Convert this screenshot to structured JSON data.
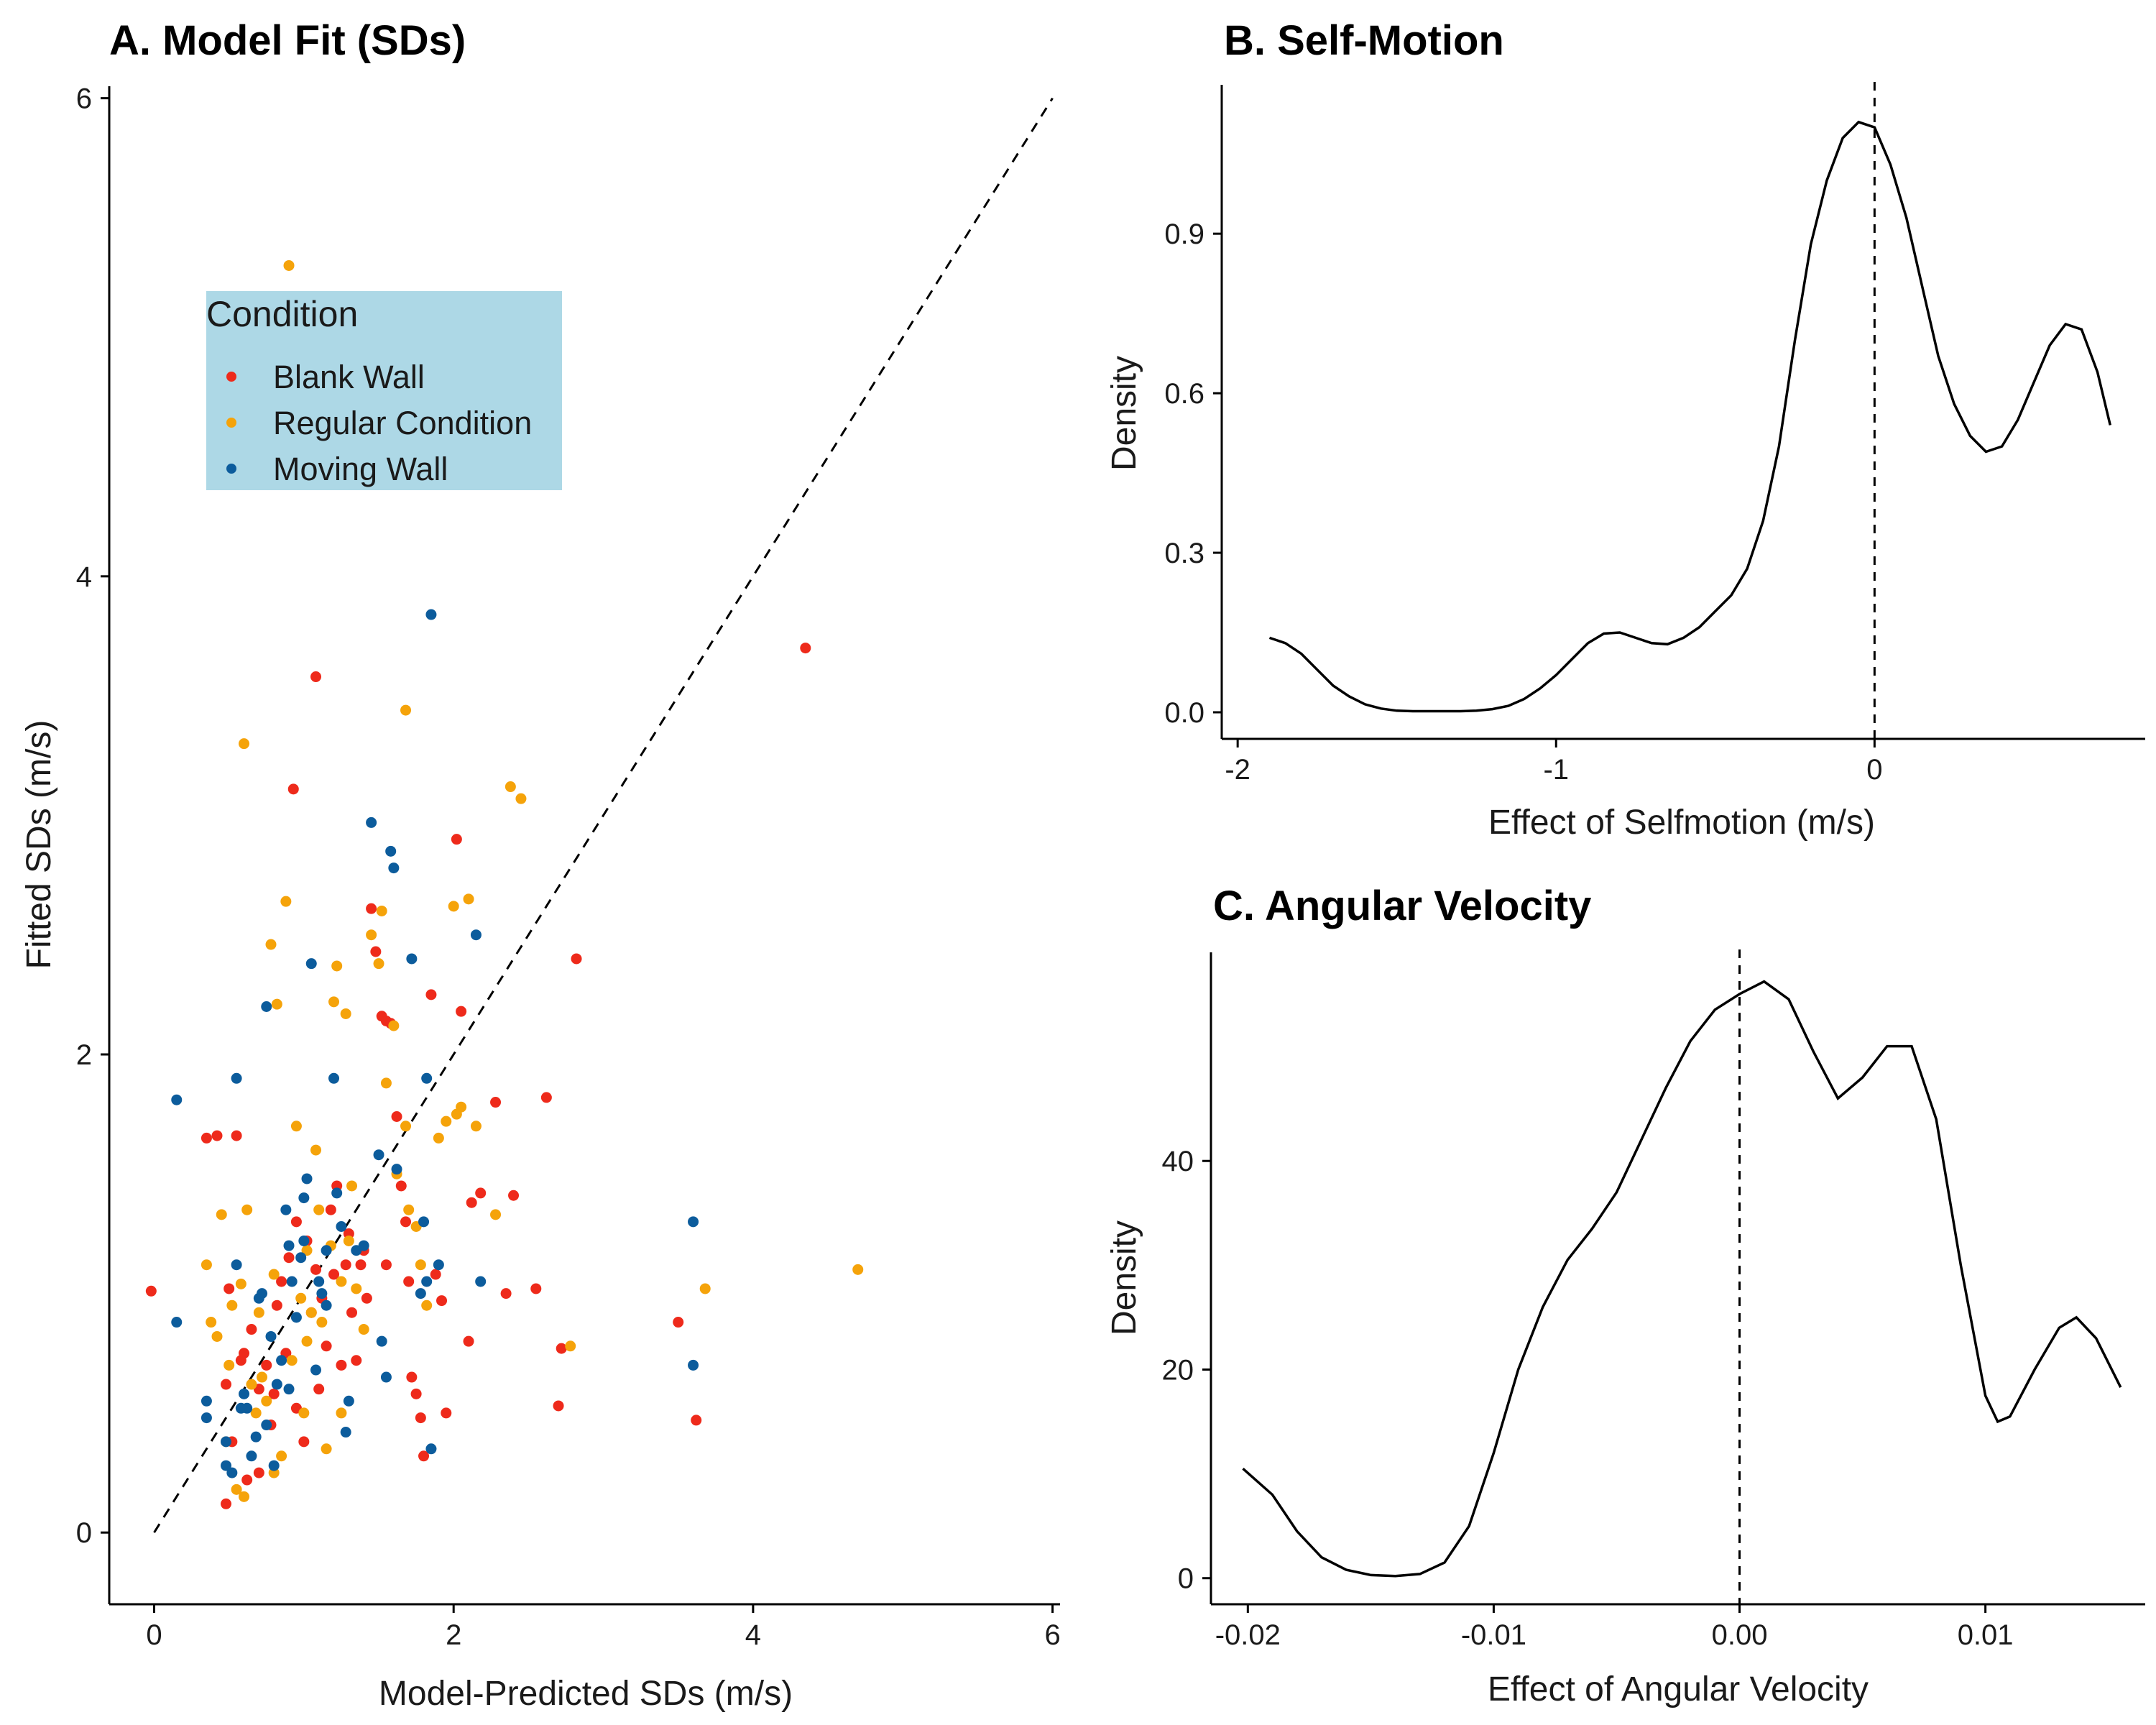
{
  "chart_data": [
    {
      "type": "scatter",
      "title": "A. Model Fit (SDs)",
      "xlabel": "Model-Predicted SDs (m/s)",
      "ylabel": "Fitted SDs (m/s)",
      "xlim": [
        -0.3,
        6.05
      ],
      "ylim": [
        -0.3,
        6.05
      ],
      "xticks": [
        "0",
        "2",
        "4",
        "6"
      ],
      "yticks": [
        "0",
        "2",
        "4",
        "6"
      ],
      "reference_line": {
        "style": "dashed",
        "from": [
          0,
          0
        ],
        "to": [
          6,
          6
        ]
      },
      "legend": {
        "title": "Condition",
        "position": "upper-left",
        "background": "#add8e6"
      },
      "series": [
        {
          "name": "Blank Wall",
          "color": "#ee2a1b",
          "points": [
            [
              -0.02,
              1.01
            ],
            [
              0.35,
              1.65
            ],
            [
              0.42,
              1.66
            ],
            [
              0.55,
              1.66
            ],
            [
              0.5,
              1.02
            ],
            [
              0.48,
              0.62
            ],
            [
              0.52,
              0.38
            ],
            [
              0.48,
              0.12
            ],
            [
              0.58,
              0.72
            ],
            [
              0.6,
              0.75
            ],
            [
              0.62,
              0.22
            ],
            [
              0.65,
              0.85
            ],
            [
              0.7,
              0.25
            ],
            [
              0.75,
              0.7
            ],
            [
              0.8,
              0.58
            ],
            [
              0.78,
              0.45
            ],
            [
              0.82,
              0.95
            ],
            [
              0.85,
              1.05
            ],
            [
              0.9,
              1.15
            ],
            [
              0.93,
              3.11
            ],
            [
              0.95,
              0.52
            ],
            [
              1.02,
              1.22
            ],
            [
              1.05,
              0.92
            ],
            [
              1.08,
              1.1
            ],
            [
              1.1,
              0.6
            ],
            [
              1.12,
              0.98
            ],
            [
              1.15,
              0.78
            ],
            [
              1.18,
              1.35
            ],
            [
              1.2,
              1.08
            ],
            [
              1.08,
              3.58
            ],
            [
              1.22,
              1.45
            ],
            [
              1.28,
              1.12
            ],
            [
              1.3,
              1.25
            ],
            [
              1.32,
              0.92
            ],
            [
              1.35,
              0.72
            ],
            [
              1.38,
              1.12
            ],
            [
              1.4,
              1.18
            ],
            [
              1.45,
              2.61
            ],
            [
              1.48,
              2.43
            ],
            [
              1.52,
              2.16
            ],
            [
              1.55,
              2.14
            ],
            [
              1.58,
              2.13
            ],
            [
              1.62,
              1.74
            ],
            [
              1.65,
              1.45
            ],
            [
              1.68,
              1.3
            ],
            [
              1.7,
              1.05
            ],
            [
              1.72,
              0.65
            ],
            [
              1.75,
              0.58
            ],
            [
              1.78,
              0.48
            ],
            [
              1.8,
              0.32
            ],
            [
              1.85,
              2.25
            ],
            [
              1.88,
              1.08
            ],
            [
              1.92,
              0.97
            ],
            [
              1.95,
              0.5
            ],
            [
              2.02,
              2.9
            ],
            [
              2.05,
              2.18
            ],
            [
              2.1,
              0.8
            ],
            [
              2.12,
              1.38
            ],
            [
              2.18,
              1.42
            ],
            [
              2.28,
              1.8
            ],
            [
              2.35,
              1.0
            ],
            [
              2.4,
              1.41
            ],
            [
              2.55,
              1.02
            ],
            [
              2.62,
              1.82
            ],
            [
              2.72,
              0.77
            ],
            [
              2.7,
              0.53
            ],
            [
              2.82,
              2.4
            ],
            [
              3.5,
              0.88
            ],
            [
              3.62,
              0.47
            ],
            [
              4.35,
              3.7
            ],
            [
              1.55,
              1.12
            ],
            [
              0.95,
              1.3
            ],
            [
              0.7,
              0.6
            ],
            [
              1.0,
              0.38
            ],
            [
              1.25,
              0.7
            ],
            [
              1.42,
              0.98
            ],
            [
              0.88,
              0.75
            ]
          ]
        },
        {
          "name": "Regular Condition",
          "color": "#f5a30a",
          "points": [
            [
              0.35,
              1.12
            ],
            [
              0.38,
              0.88
            ],
            [
              0.42,
              0.82
            ],
            [
              0.45,
              1.33
            ],
            [
              0.48,
              0.38
            ],
            [
              0.5,
              0.7
            ],
            [
              0.52,
              0.95
            ],
            [
              0.55,
              0.18
            ],
            [
              0.58,
              1.04
            ],
            [
              0.6,
              3.3
            ],
            [
              0.62,
              1.35
            ],
            [
              0.65,
              0.62
            ],
            [
              0.68,
              0.5
            ],
            [
              0.7,
              0.92
            ],
            [
              0.72,
              0.65
            ],
            [
              0.75,
              0.55
            ],
            [
              0.78,
              2.46
            ],
            [
              0.8,
              1.08
            ],
            [
              0.82,
              2.21
            ],
            [
              0.85,
              0.32
            ],
            [
              0.88,
              2.64
            ],
            [
              0.9,
              5.3
            ],
            [
              0.92,
              0.72
            ],
            [
              0.95,
              1.7
            ],
            [
              0.98,
              0.98
            ],
            [
              1.0,
              0.5
            ],
            [
              1.02,
              1.18
            ],
            [
              1.05,
              0.92
            ],
            [
              1.08,
              1.6
            ],
            [
              1.1,
              1.35
            ],
            [
              1.12,
              0.88
            ],
            [
              1.15,
              0.35
            ],
            [
              1.18,
              1.2
            ],
            [
              1.2,
              2.22
            ],
            [
              1.22,
              2.37
            ],
            [
              1.25,
              1.05
            ],
            [
              1.28,
              2.17
            ],
            [
              1.3,
              1.22
            ],
            [
              1.32,
              1.45
            ],
            [
              1.35,
              1.02
            ],
            [
              1.4,
              0.85
            ],
            [
              1.45,
              2.5
            ],
            [
              1.5,
              2.38
            ],
            [
              1.52,
              2.6
            ],
            [
              1.55,
              1.88
            ],
            [
              1.6,
              2.12
            ],
            [
              1.62,
              1.5
            ],
            [
              1.68,
              3.44
            ],
            [
              1.7,
              1.35
            ],
            [
              1.75,
              1.28
            ],
            [
              1.78,
              1.12
            ],
            [
              1.82,
              0.95
            ],
            [
              1.9,
              1.65
            ],
            [
              1.95,
              1.72
            ],
            [
              2.0,
              2.62
            ],
            [
              2.02,
              1.75
            ],
            [
              2.05,
              1.78
            ],
            [
              2.1,
              2.65
            ],
            [
              2.15,
              1.7
            ],
            [
              2.28,
              1.33
            ],
            [
              2.38,
              3.12
            ],
            [
              2.45,
              3.07
            ],
            [
              2.78,
              0.78
            ],
            [
              3.68,
              1.02
            ],
            [
              4.7,
              1.1
            ],
            [
              1.68,
              1.7
            ],
            [
              0.6,
              0.15
            ],
            [
              0.8,
              0.25
            ],
            [
              1.02,
              0.8
            ],
            [
              1.25,
              0.5
            ]
          ]
        },
        {
          "name": "Moving Wall",
          "color": "#0c5c9c",
          "points": [
            [
              0.15,
              1.81
            ],
            [
              0.15,
              0.88
            ],
            [
              0.35,
              0.48
            ],
            [
              0.35,
              0.55
            ],
            [
              0.48,
              0.28
            ],
            [
              0.52,
              0.25
            ],
            [
              0.55,
              1.9
            ],
            [
              0.55,
              1.12
            ],
            [
              0.58,
              0.52
            ],
            [
              0.6,
              0.58
            ],
            [
              0.62,
              0.52
            ],
            [
              0.65,
              0.32
            ],
            [
              0.68,
              0.4
            ],
            [
              0.7,
              0.98
            ],
            [
              0.72,
              1.0
            ],
            [
              0.75,
              2.2
            ],
            [
              0.78,
              0.82
            ],
            [
              0.8,
              0.28
            ],
            [
              0.82,
              0.62
            ],
            [
              0.85,
              0.72
            ],
            [
              0.88,
              1.35
            ],
            [
              0.9,
              1.2
            ],
            [
              0.92,
              1.05
            ],
            [
              0.95,
              0.9
            ],
            [
              0.98,
              1.15
            ],
            [
              1.0,
              1.22
            ],
            [
              1.02,
              1.48
            ],
            [
              1.05,
              2.38
            ],
            [
              1.08,
              0.68
            ],
            [
              1.1,
              1.05
            ],
            [
              1.12,
              1.0
            ],
            [
              1.15,
              1.18
            ],
            [
              1.2,
              1.9
            ],
            [
              1.22,
              1.42
            ],
            [
              1.25,
              1.28
            ],
            [
              1.28,
              0.42
            ],
            [
              1.3,
              0.55
            ],
            [
              1.35,
              1.18
            ],
            [
              1.4,
              1.2
            ],
            [
              1.45,
              2.97
            ],
            [
              1.5,
              1.58
            ],
            [
              1.52,
              0.8
            ],
            [
              1.55,
              0.65
            ],
            [
              1.58,
              2.85
            ],
            [
              1.6,
              2.78
            ],
            [
              1.62,
              1.52
            ],
            [
              1.72,
              2.4
            ],
            [
              1.78,
              1.0
            ],
            [
              1.8,
              1.3
            ],
            [
              1.82,
              1.9
            ],
            [
              1.82,
              1.05
            ],
            [
              1.85,
              3.84
            ],
            [
              1.85,
              0.35
            ],
            [
              1.9,
              1.12
            ],
            [
              2.15,
              2.5
            ],
            [
              2.18,
              1.05
            ],
            [
              3.6,
              1.3
            ],
            [
              3.6,
              0.7
            ],
            [
              0.9,
              0.6
            ],
            [
              0.48,
              0.38
            ],
            [
              1.0,
              1.4
            ],
            [
              1.15,
              0.95
            ],
            [
              0.75,
              0.45
            ]
          ]
        }
      ]
    },
    {
      "type": "line",
      "title": "B. Self-Motion",
      "xlabel": "Effect of Selfmotion (m/s)",
      "ylabel": "Density",
      "xlim": [
        -2.05,
        0.85
      ],
      "ylim": [
        -0.05,
        1.18
      ],
      "xticks": [
        "-2",
        "-1",
        "0"
      ],
      "yticks": [
        "0.0",
        "0.3",
        "0.6",
        "0.9"
      ],
      "reference_line": {
        "style": "dashed",
        "x": 0
      },
      "x": [
        -1.9,
        -1.85,
        -1.8,
        -1.75,
        -1.7,
        -1.65,
        -1.6,
        -1.55,
        -1.5,
        -1.45,
        -1.4,
        -1.35,
        -1.3,
        -1.25,
        -1.2,
        -1.15,
        -1.1,
        -1.05,
        -1.0,
        -0.95,
        -0.9,
        -0.85,
        -0.8,
        -0.75,
        -0.7,
        -0.65,
        -0.6,
        -0.55,
        -0.5,
        -0.45,
        -0.4,
        -0.35,
        -0.3,
        -0.25,
        -0.2,
        -0.15,
        -0.1,
        -0.05,
        0.0,
        0.05,
        0.1,
        0.15,
        0.2,
        0.25,
        0.3,
        0.35,
        0.4,
        0.45,
        0.5,
        0.55,
        0.6,
        0.65,
        0.7,
        0.74
      ],
      "values": [
        0.14,
        0.13,
        0.11,
        0.08,
        0.05,
        0.03,
        0.015,
        0.007,
        0.003,
        0.002,
        0.002,
        0.002,
        0.002,
        0.003,
        0.006,
        0.012,
        0.025,
        0.045,
        0.07,
        0.1,
        0.13,
        0.148,
        0.15,
        0.14,
        0.13,
        0.128,
        0.14,
        0.16,
        0.19,
        0.22,
        0.27,
        0.36,
        0.5,
        0.7,
        0.88,
        1.0,
        1.08,
        1.11,
        1.1,
        1.03,
        0.93,
        0.8,
        0.67,
        0.58,
        0.52,
        0.49,
        0.5,
        0.55,
        0.62,
        0.69,
        0.73,
        0.72,
        0.64,
        0.54
      ]
    },
    {
      "type": "line",
      "title": "C. Angular Velocity",
      "xlabel": "Effect of Angular Velocity",
      "ylabel": "Density",
      "xlim": [
        -0.0215,
        0.0165
      ],
      "ylim": [
        -2.5,
        60
      ],
      "xticks": [
        "-0.02",
        "-0.01",
        "0.00",
        "0.01"
      ],
      "yticks": [
        "0",
        "20",
        "40"
      ],
      "reference_line": {
        "style": "dashed",
        "x": 0
      },
      "x": [
        -0.0202,
        -0.019,
        -0.018,
        -0.017,
        -0.016,
        -0.015,
        -0.014,
        -0.013,
        -0.012,
        -0.011,
        -0.01,
        -0.009,
        -0.008,
        -0.007,
        -0.006,
        -0.005,
        -0.004,
        -0.003,
        -0.002,
        -0.001,
        0.0,
        0.001,
        0.002,
        0.003,
        0.004,
        0.005,
        0.006,
        0.007,
        0.008,
        0.009,
        0.01,
        0.0105,
        0.011,
        0.012,
        0.013,
        0.0137,
        0.0145,
        0.0155
      ],
      "values": [
        10.5,
        8,
        4.5,
        2,
        0.8,
        0.3,
        0.2,
        0.4,
        1.5,
        5,
        12,
        20,
        26,
        30.5,
        33.5,
        37,
        42,
        47,
        51.5,
        54.5,
        56,
        57.2,
        55.5,
        50.5,
        46,
        48,
        51,
        51,
        44,
        30,
        17.5,
        15,
        15.5,
        20,
        24,
        25,
        23,
        18.3
      ]
    }
  ]
}
